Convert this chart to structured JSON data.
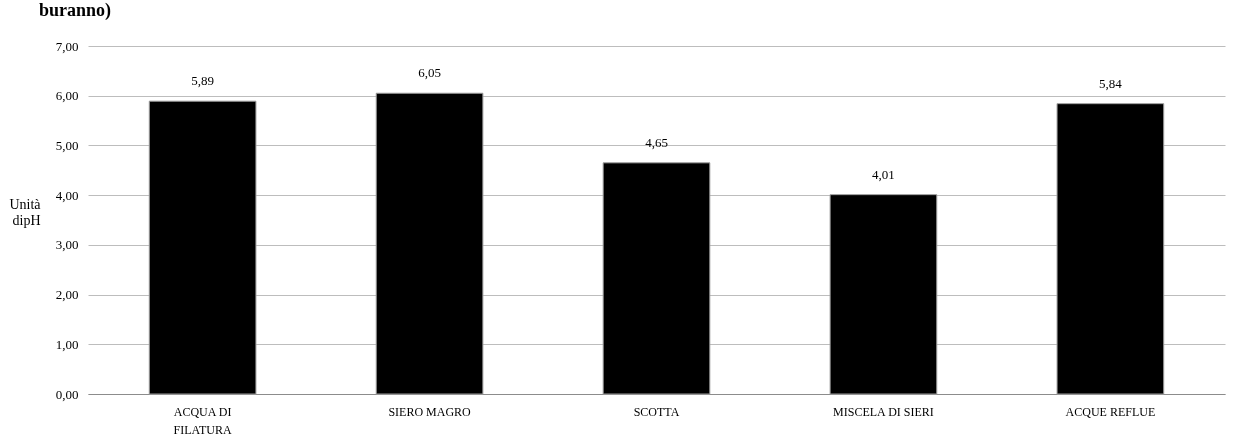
{
  "chart_data": {
    "type": "bar",
    "title": "buranno)",
    "ylabel": "Unità dipH",
    "categories": [
      "ACQUA DI FILATURA",
      "SIERO MAGRO",
      "SCOTTA",
      "MISCELA DI SIERI",
      "ACQUE REFLUE"
    ],
    "values": [
      5.89,
      6.05,
      4.65,
      4.01,
      5.84
    ],
    "value_labels": [
      "5,89",
      "6,05",
      "4,65",
      "4,01",
      "5,84"
    ],
    "color": "#000000",
    "ylim": [
      0,
      7
    ],
    "yticks": [
      {
        "value": 0,
        "label": "0,00"
      },
      {
        "value": 1,
        "label": "1,00"
      },
      {
        "value": 2,
        "label": "2,00"
      },
      {
        "value": 3,
        "label": "3,00"
      },
      {
        "value": 4,
        "label": "4,00"
      },
      {
        "value": 5,
        "label": "5,00"
      },
      {
        "value": 6,
        "label": "6,00"
      },
      {
        "value": 7,
        "label": "7,00"
      }
    ],
    "grid": "y"
  }
}
